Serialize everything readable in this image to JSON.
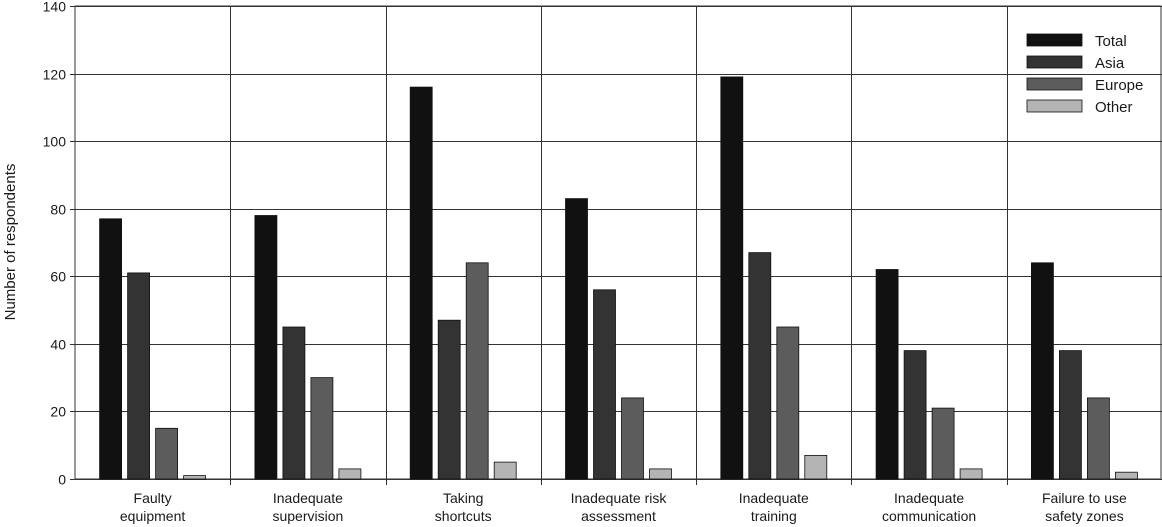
{
  "chart_data": {
    "type": "bar",
    "ylabel": "Number of respondents",
    "ylim": [
      0,
      140
    ],
    "yticks": [
      "0",
      "20",
      "40",
      "60",
      "80",
      "100",
      "120",
      "140"
    ],
    "grid": true,
    "legend_position": "top-right",
    "categories": [
      [
        "Faulty",
        "equipment"
      ],
      [
        "Inadequate",
        "supervision"
      ],
      [
        "Taking",
        "shortcuts"
      ],
      [
        "Inadequate risk",
        "assessment"
      ],
      [
        "Inadequate",
        "training"
      ],
      [
        "Inadequate",
        "communication"
      ],
      [
        "Failure to use",
        "safety zones"
      ]
    ],
    "series": [
      {
        "name": "Total",
        "color": "#111111",
        "values": [
          77,
          78,
          116,
          83,
          119,
          62,
          64
        ]
      },
      {
        "name": "Asia",
        "color": "#333333",
        "values": [
          61,
          45,
          47,
          56,
          67,
          38,
          38
        ]
      },
      {
        "name": "Europe",
        "color": "#5c5c5c",
        "values": [
          15,
          30,
          64,
          24,
          45,
          21,
          24
        ]
      },
      {
        "name": "Other",
        "color": "#b4b4b4",
        "values": [
          1,
          3,
          5,
          3,
          7,
          3,
          2
        ]
      }
    ]
  }
}
